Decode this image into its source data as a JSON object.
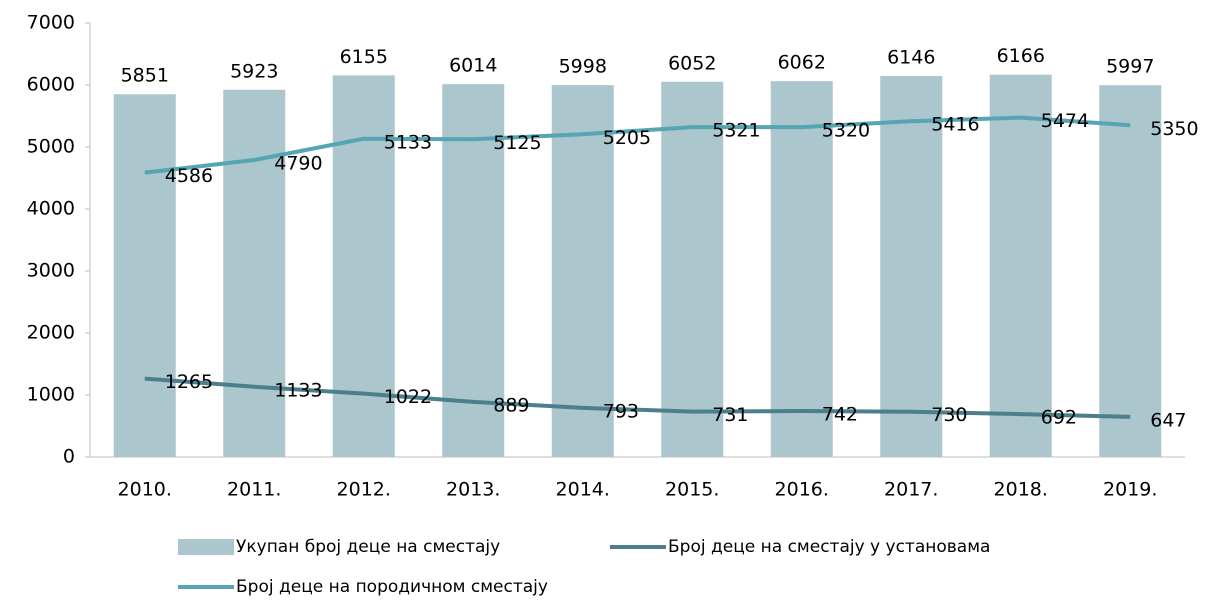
{
  "chart_data": {
    "type": "combo",
    "categories": [
      "2010.",
      "2011.",
      "2012.",
      "2013.",
      "2014.",
      "2015.",
      "2016.",
      "2017.",
      "2018.",
      "2019."
    ],
    "series": [
      {
        "name": "Укупан број деце на сместају",
        "type": "bar",
        "color": "#abc6cd",
        "values": [
          5851,
          5923,
          6155,
          6014,
          5998,
          6052,
          6062,
          6146,
          6166,
          5997
        ]
      },
      {
        "name": "Број деце на сместају у установама",
        "type": "line",
        "color": "#4b7f8b",
        "values": [
          1265,
          1133,
          1022,
          889,
          793,
          731,
          742,
          730,
          692,
          647
        ]
      },
      {
        "name": "Број деце на породичном сместају",
        "type": "line",
        "color": "#55a5b3",
        "values": [
          4586,
          4790,
          5133,
          5125,
          5205,
          5321,
          5320,
          5416,
          5474,
          5350
        ]
      }
    ],
    "ylim": [
      0,
      7000
    ],
    "yticks": [
      0,
      1000,
      2000,
      3000,
      4000,
      5000,
      6000,
      7000
    ],
    "grid": false
  }
}
